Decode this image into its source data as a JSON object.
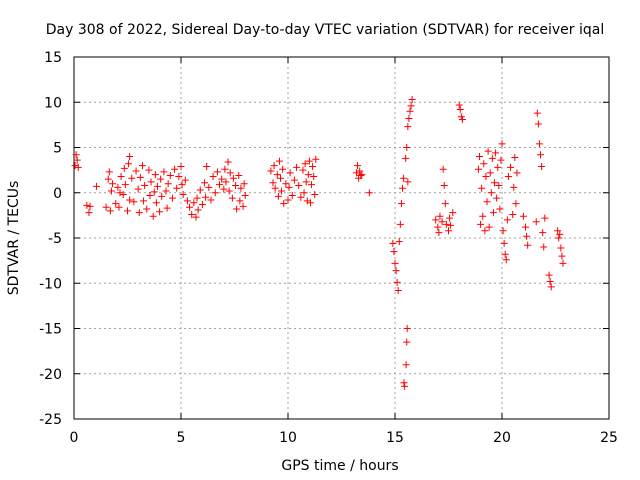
{
  "chart_data": {
    "type": "scatter",
    "title": "Day 308 of 2022, Sidereal Day-to-day VTEC variation (SDTVAR) for receiver iqal",
    "xlabel": "GPS time / hours",
    "ylabel": "SDTVAR / TECUs",
    "xlim": [
      0,
      25
    ],
    "ylim": [
      -25,
      15
    ],
    "xticks": [
      0,
      5,
      10,
      15,
      20,
      25
    ],
    "yticks": [
      -25,
      -20,
      -15,
      -10,
      -5,
      0,
      5,
      10,
      15
    ],
    "grid": true,
    "marker": "+",
    "marker_color": "#ff0000",
    "series": [
      {
        "name": "SDTVAR",
        "points": [
          [
            0.05,
            3.0
          ],
          [
            0.1,
            4.2
          ],
          [
            0.15,
            3.6
          ],
          [
            0.2,
            2.8
          ],
          [
            0.6,
            -1.4
          ],
          [
            0.7,
            -2.2
          ],
          [
            0.75,
            -1.5
          ],
          [
            1.05,
            0.7
          ],
          [
            1.5,
            -1.6
          ],
          [
            1.6,
            1.5
          ],
          [
            1.65,
            2.3
          ],
          [
            1.7,
            -2.0
          ],
          [
            1.75,
            0.2
          ],
          [
            1.8,
            1.0
          ],
          [
            1.95,
            -1.2
          ],
          [
            2.05,
            0.6
          ],
          [
            2.1,
            -1.6
          ],
          [
            2.15,
            0.0
          ],
          [
            2.2,
            1.8
          ],
          [
            2.3,
            -0.2
          ],
          [
            2.35,
            2.7
          ],
          [
            2.4,
            0.9
          ],
          [
            2.5,
            -2.0
          ],
          [
            2.55,
            3.2
          ],
          [
            2.6,
            -0.8
          ],
          [
            2.6,
            4.0
          ],
          [
            2.7,
            1.6
          ],
          [
            2.8,
            -1.0
          ],
          [
            2.9,
            2.4
          ],
          [
            3.0,
            0.4
          ],
          [
            3.05,
            -2.2
          ],
          [
            3.1,
            1.7
          ],
          [
            3.2,
            3.0
          ],
          [
            3.25,
            -0.9
          ],
          [
            3.3,
            0.8
          ],
          [
            3.4,
            -1.8
          ],
          [
            3.5,
            2.5
          ],
          [
            3.55,
            -0.3
          ],
          [
            3.6,
            1.2
          ],
          [
            3.7,
            -2.6
          ],
          [
            3.75,
            0.1
          ],
          [
            3.8,
            2.0
          ],
          [
            3.85,
            -1.1
          ],
          [
            3.9,
            0.7
          ],
          [
            4.0,
            -2.1
          ],
          [
            4.05,
            1.5
          ],
          [
            4.1,
            -0.4
          ],
          [
            4.2,
            2.3
          ],
          [
            4.3,
            0.2
          ],
          [
            4.35,
            -1.7
          ],
          [
            4.4,
            1.0
          ],
          [
            4.5,
            1.9
          ],
          [
            4.6,
            -0.6
          ],
          [
            4.7,
            2.6
          ],
          [
            4.8,
            0.5
          ],
          [
            4.9,
            1.8
          ],
          [
            5.0,
            2.9
          ],
          [
            5.05,
            0.9
          ],
          [
            5.1,
            -0.2
          ],
          [
            5.2,
            1.4
          ],
          [
            5.3,
            -0.9
          ],
          [
            5.4,
            -1.6
          ],
          [
            5.5,
            -2.4
          ],
          [
            5.6,
            -1.1
          ],
          [
            5.7,
            -2.7
          ],
          [
            5.75,
            -0.6
          ],
          [
            5.8,
            -1.9
          ],
          [
            5.9,
            0.3
          ],
          [
            6.0,
            -1.3
          ],
          [
            6.1,
            1.1
          ],
          [
            6.15,
            -0.5
          ],
          [
            6.2,
            2.9
          ],
          [
            6.3,
            0.6
          ],
          [
            6.4,
            -0.8
          ],
          [
            6.5,
            1.8
          ],
          [
            6.6,
            0.0
          ],
          [
            6.7,
            2.3
          ],
          [
            6.8,
            0.9
          ],
          [
            6.9,
            1.5
          ],
          [
            7.0,
            0.4
          ],
          [
            7.05,
            2.6
          ],
          [
            7.1,
            1.2
          ],
          [
            7.2,
            3.4
          ],
          [
            7.25,
            0.2
          ],
          [
            7.3,
            2.2
          ],
          [
            7.4,
            -0.6
          ],
          [
            7.45,
            1.6
          ],
          [
            7.55,
            0.8
          ],
          [
            7.6,
            -1.8
          ],
          [
            7.7,
            1.9
          ],
          [
            7.75,
            -0.9
          ],
          [
            7.8,
            0.5
          ],
          [
            7.9,
            -1.5
          ],
          [
            7.95,
            1.0
          ],
          [
            8.0,
            -0.3
          ],
          [
            9.2,
            2.4
          ],
          [
            9.3,
            1.1
          ],
          [
            9.35,
            3.0
          ],
          [
            9.4,
            0.5
          ],
          [
            9.5,
            2.0
          ],
          [
            9.55,
            -0.4
          ],
          [
            9.6,
            3.5
          ],
          [
            9.65,
            1.6
          ],
          [
            9.7,
            0.2
          ],
          [
            9.75,
            2.6
          ],
          [
            9.8,
            -1.2
          ],
          [
            9.9,
            1.0
          ],
          [
            10.0,
            -0.8
          ],
          [
            10.05,
            0.6
          ],
          [
            10.1,
            2.2
          ],
          [
            10.2,
            -0.3
          ],
          [
            10.3,
            1.4
          ],
          [
            10.4,
            2.8
          ],
          [
            10.5,
            0.8
          ],
          [
            10.6,
            -0.5
          ],
          [
            10.7,
            2.5
          ],
          [
            10.75,
            0.0
          ],
          [
            10.8,
            3.2
          ],
          [
            10.85,
            1.2
          ],
          [
            10.9,
            -0.9
          ],
          [
            10.95,
            2.0
          ],
          [
            11.0,
            3.5
          ],
          [
            11.05,
            -1.1
          ],
          [
            11.1,
            0.9
          ],
          [
            11.15,
            2.9
          ],
          [
            11.2,
            1.8
          ],
          [
            11.25,
            -0.2
          ],
          [
            11.3,
            3.7
          ],
          [
            13.2,
            2.2
          ],
          [
            13.25,
            3.0
          ],
          [
            13.3,
            1.6
          ],
          [
            13.35,
            2.4
          ],
          [
            13.4,
            1.9
          ],
          [
            13.45,
            2.0
          ],
          [
            13.8,
            0.0
          ],
          [
            14.9,
            -5.6
          ],
          [
            14.95,
            -6.5
          ],
          [
            15.0,
            -7.8
          ],
          [
            15.05,
            -8.6
          ],
          [
            15.1,
            -9.9
          ],
          [
            15.15,
            -10.8
          ],
          [
            15.2,
            -5.4
          ],
          [
            15.25,
            -3.5
          ],
          [
            15.3,
            -1.2
          ],
          [
            15.35,
            0.5
          ],
          [
            15.4,
            1.6
          ],
          [
            15.42,
            -21.0
          ],
          [
            15.45,
            -21.4
          ],
          [
            15.5,
            3.8
          ],
          [
            15.52,
            -19.0
          ],
          [
            15.55,
            -16.5
          ],
          [
            15.57,
            -15.0
          ],
          [
            15.6,
            7.3
          ],
          [
            15.65,
            8.2
          ],
          [
            15.7,
            9.0
          ],
          [
            15.75,
            9.6
          ],
          [
            15.8,
            10.3
          ],
          [
            15.55,
            5.0
          ],
          [
            15.6,
            1.2
          ],
          [
            16.9,
            -3.0
          ],
          [
            17.0,
            -3.8
          ],
          [
            17.05,
            -4.4
          ],
          [
            17.1,
            -2.6
          ],
          [
            17.2,
            -3.2
          ],
          [
            17.25,
            2.6
          ],
          [
            17.3,
            0.8
          ],
          [
            17.35,
            -1.2
          ],
          [
            17.4,
            -3.5
          ],
          [
            17.5,
            -4.2
          ],
          [
            17.55,
            -2.8
          ],
          [
            17.6,
            -3.6
          ],
          [
            17.7,
            -2.2
          ],
          [
            18.0,
            9.7
          ],
          [
            18.05,
            9.2
          ],
          [
            18.1,
            8.4
          ],
          [
            18.15,
            8.1
          ],
          [
            18.9,
            2.6
          ],
          [
            18.95,
            4.0
          ],
          [
            19.0,
            -3.5
          ],
          [
            19.05,
            0.5
          ],
          [
            19.1,
            -2.6
          ],
          [
            19.15,
            3.2
          ],
          [
            19.2,
            -4.2
          ],
          [
            19.25,
            1.8
          ],
          [
            19.3,
            -1.0
          ],
          [
            19.35,
            4.6
          ],
          [
            19.4,
            -3.8
          ],
          [
            19.45,
            2.2
          ],
          [
            19.5,
            0.0
          ],
          [
            19.55,
            3.8
          ],
          [
            19.6,
            -2.2
          ],
          [
            19.65,
            1.1
          ],
          [
            19.7,
            4.4
          ],
          [
            19.75,
            -0.6
          ],
          [
            19.8,
            2.8
          ],
          [
            19.85,
            0.8
          ],
          [
            19.9,
            -1.8
          ],
          [
            19.95,
            3.6
          ],
          [
            20.0,
            5.4
          ],
          [
            20.05,
            -4.2
          ],
          [
            20.1,
            -5.6
          ],
          [
            20.15,
            -6.8
          ],
          [
            20.2,
            -7.4
          ],
          [
            20.25,
            -3.0
          ],
          [
            20.3,
            1.8
          ],
          [
            20.4,
            2.8
          ],
          [
            20.5,
            -2.4
          ],
          [
            20.55,
            0.6
          ],
          [
            20.6,
            3.9
          ],
          [
            20.65,
            -1.2
          ],
          [
            20.7,
            2.2
          ],
          [
            21.0,
            -2.6
          ],
          [
            21.1,
            -3.8
          ],
          [
            21.15,
            -4.8
          ],
          [
            21.2,
            -5.8
          ],
          [
            21.6,
            -3.2
          ],
          [
            21.65,
            8.8
          ],
          [
            21.7,
            7.6
          ],
          [
            21.75,
            5.4
          ],
          [
            21.8,
            4.2
          ],
          [
            21.85,
            2.9
          ],
          [
            21.9,
            -4.4
          ],
          [
            21.95,
            -6.0
          ],
          [
            22.0,
            -2.8
          ],
          [
            22.2,
            -9.1
          ],
          [
            22.25,
            -9.8
          ],
          [
            22.3,
            -10.4
          ],
          [
            22.6,
            -4.2
          ],
          [
            22.65,
            -5.0
          ],
          [
            22.7,
            -4.6
          ],
          [
            22.75,
            -6.1
          ],
          [
            22.8,
            -7.0
          ],
          [
            22.85,
            -7.8
          ]
        ]
      }
    ]
  }
}
